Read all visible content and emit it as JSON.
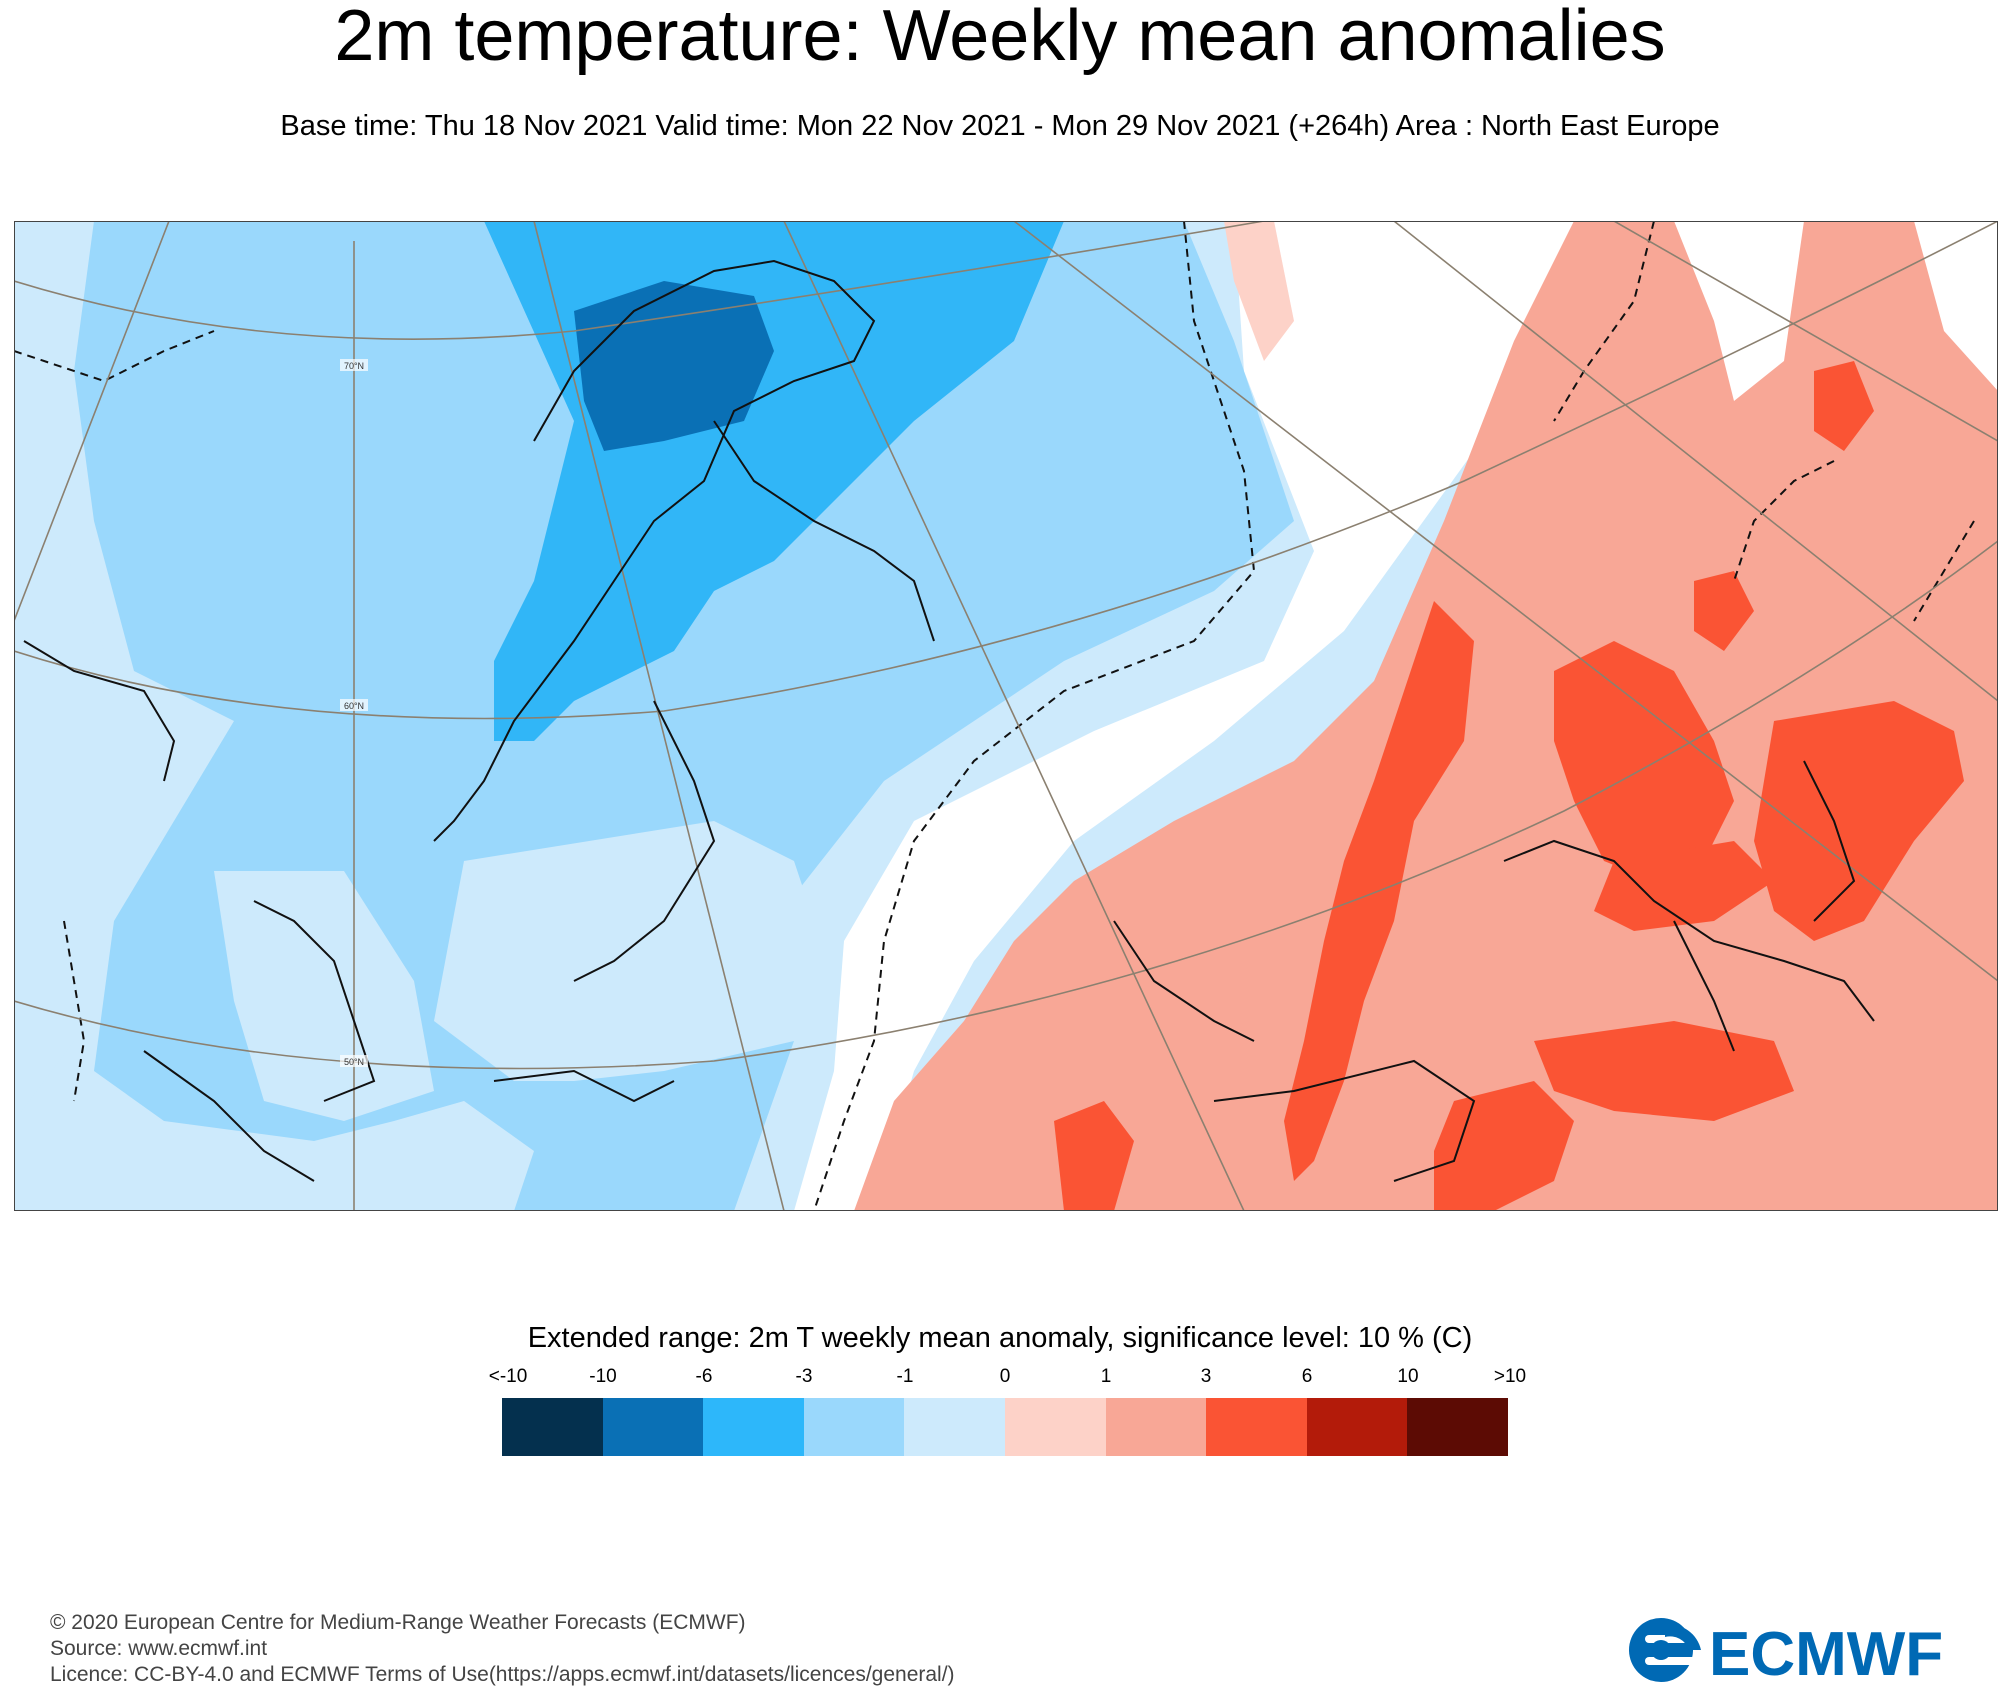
{
  "title": "2m temperature: Weekly mean anomalies",
  "subtitle": "Base time: Thu 18 Nov 2021 Valid time: Mon 22 Nov 2021 - Mon 29 Nov 2021 (+264h) Area : North East Europe",
  "map": {
    "lat_labels": [
      "70°N",
      "60°N",
      "50°N"
    ],
    "colors": {
      "n10": "#053a5b",
      "n6": "#0a6fb5",
      "n3": "#31b6f7",
      "n1": "#9ad8fc",
      "n0": "#cdeafc",
      "white": "#ffffff",
      "p0": "#fdd2c8",
      "p1": "#f8a796",
      "p3": "#fa5434",
      "p6": "#b31b0a",
      "p10": "#5c0b04",
      "coast": "#111111",
      "grid": "#8b8070"
    }
  },
  "legend": {
    "title": "Extended range: 2m T weekly mean anomaly, significance level: 10 % (C)",
    "labels": [
      "<-10",
      "-10",
      "-6",
      "-3",
      "-1",
      "0",
      "1",
      "3",
      "6",
      "10",
      ">10"
    ],
    "colors": [
      "#04304e",
      "#0a70b5",
      "#2db7fa",
      "#9ad8fc",
      "#cdeafc",
      "#fdd2c8",
      "#f8a796",
      "#fa5434",
      "#b31b0a",
      "#5c0b04"
    ]
  },
  "footer": {
    "line1": "© 2020 European Centre for Medium-Range Weather Forecasts (ECMWF)",
    "line2": "Source: www.ecmwf.int",
    "line3": "Licence: CC-BY-4.0 and ECMWF Terms of Use(https://apps.ecmwf.int/datasets/licences/general/)"
  },
  "logo": {
    "text": "ECMWF",
    "color": "#0069b4"
  }
}
